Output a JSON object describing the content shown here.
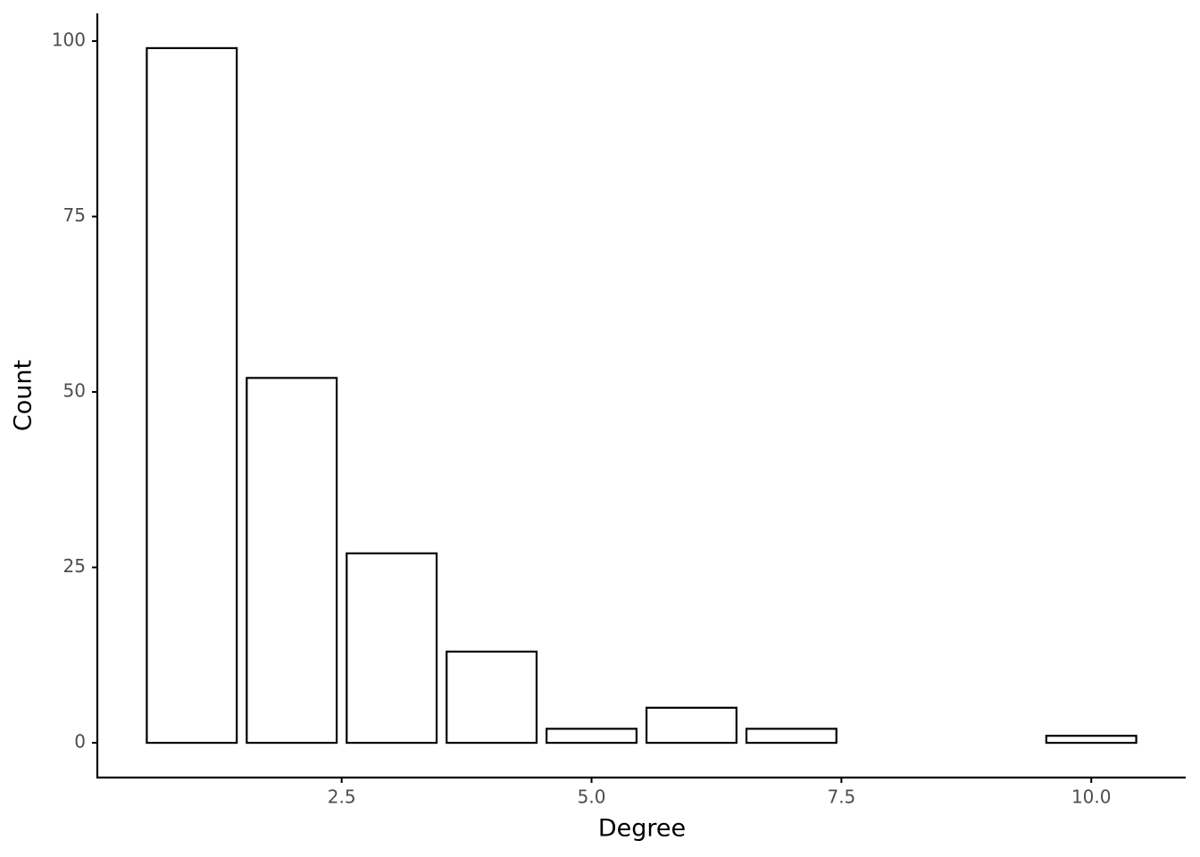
{
  "chart_data": {
    "type": "bar",
    "x_label": "Degree",
    "y_label": "Count",
    "x": [
      1,
      2,
      3,
      4,
      5,
      6,
      7,
      10
    ],
    "values": [
      99,
      52,
      27,
      13,
      2,
      5,
      2,
      1
    ],
    "color": "#ffffff",
    "edge_color": "#000000",
    "xlim": [
      0.055,
      10.945
    ],
    "xticks": [
      2.5,
      {
        "value": 5,
        "label": "5.0"
      },
      7.5,
      {
        "value": 10,
        "label": "10.0"
      }
    ],
    "ylim": [
      -4.95,
      103.95
    ],
    "yticks": [
      0,
      25,
      50,
      75,
      100
    ],
    "grid": false
  }
}
